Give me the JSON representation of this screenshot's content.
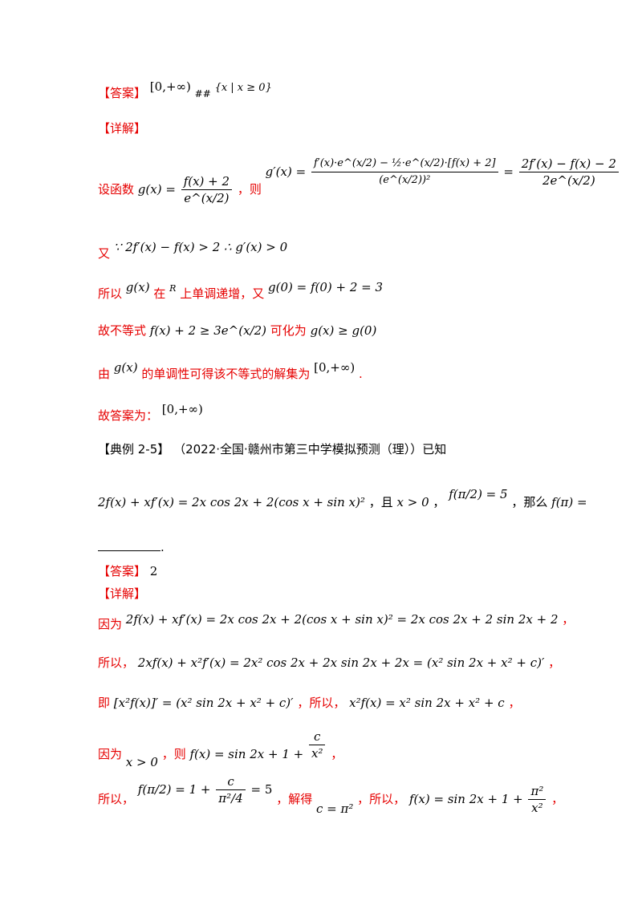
{
  "block1": {
    "answer_tag": "【答案】",
    "answer_math": "[0,+∞)",
    "answer_sep": "##",
    "answer_alt": "{x | x ≥ 0}",
    "detail_tag": "【详解】",
    "line1_lead": "设函数",
    "line1_g": "g(x) =",
    "line1_g_num": "f(x) + 2",
    "line1_g_den": "e^(x/2)",
    "line1_then": "，则",
    "line1_gp": "g′(x) =",
    "line1_gp_num": "f′(x)·e^(x/2) − ½·e^(x/2)·[f(x) + 2]",
    "line1_gp_den": "(e^(x/2))²",
    "line1_eq2_num": "2f′(x) − f(x) − 2",
    "line1_eq2_den": "2e^(x/2)",
    "line2_lead": "又",
    "line2_math": "∵ 2f′(x) − f(x) > 2   ∴ g′(x) > 0",
    "line3_lead": "所以",
    "line3_g": "g(x)",
    "line3_mid": "在",
    "line3_R": "R",
    "line3_text": "上单调递增，又",
    "line3_math": "g(0) = f(0) + 2 = 3",
    "line4_lead": "故不等式",
    "line4_math": "f(x) + 2 ≥ 3e^(x/2)",
    "line4_mid": "可化为",
    "line4_math2": "g(x) ≥ g(0)",
    "line5_lead": "由",
    "line5_g": "g(x)",
    "line5_text": "的单调性可得该不等式的解集为",
    "line5_math": "[0,+∞)",
    "line5_end": ".",
    "line6_lead": "故答案为：",
    "line6_math": "[0,+∞)"
  },
  "block2": {
    "example_tag": "【典例 2-5】",
    "example_src": "（2022·全国·赣州市第三中学模拟预测（理））已知",
    "given_math": "2f(x) + xf′(x) = 2x cos 2x + 2(cos x + sin x)²",
    "given_cond1": "，且",
    "given_cond2": "x > 0",
    "given_cond3": "，",
    "given_f_pi2": "f(π/2) = 5",
    "given_then": "，那么",
    "given_ask": "f(π) =",
    "blank_end": ".",
    "answer_tag": "【答案】",
    "answer_value": "2",
    "detail_tag": "【详解】",
    "s1_lead": "因为",
    "s1_math": "2f(x) + xf′(x) = 2x cos 2x + 2(cos x + sin x)² = 2x cos 2x + 2 sin 2x + 2",
    "s1_end": "，",
    "s2_lead": "所以，",
    "s2_math": "2xf(x) + x²f′(x) = 2x² cos 2x + 2x sin 2x + 2x = (x² sin 2x + x² + c)′",
    "s2_end": "，",
    "s3_lead": "即",
    "s3_math": "[x²f(x)]′ = (x² sin 2x + x² + c)′",
    "s3_mid": "，所以，",
    "s3_math2": "x²f(x) = x² sin 2x + x² + c",
    "s3_end": "，",
    "s4_lead": "因为",
    "s4_cond": "x > 0",
    "s4_mid": "，则",
    "s4_math": "f(x) = sin 2x + 1 +",
    "s4_num": "c",
    "s4_den": "x²",
    "s4_end": "，",
    "s5_lead": "所以，",
    "s5_math": "f(π/2) = 1 +",
    "s5_num": "c",
    "s5_den": "π²/4",
    "s5_eq": "= 5",
    "s5_mid": "，解得",
    "s5_c": "c = π²",
    "s5_mid2": "，所以，",
    "s5_math2": "f(x) = sin 2x + 1 +",
    "s5_num2": "π²",
    "s5_den2": "x²",
    "s5_end": "，"
  }
}
